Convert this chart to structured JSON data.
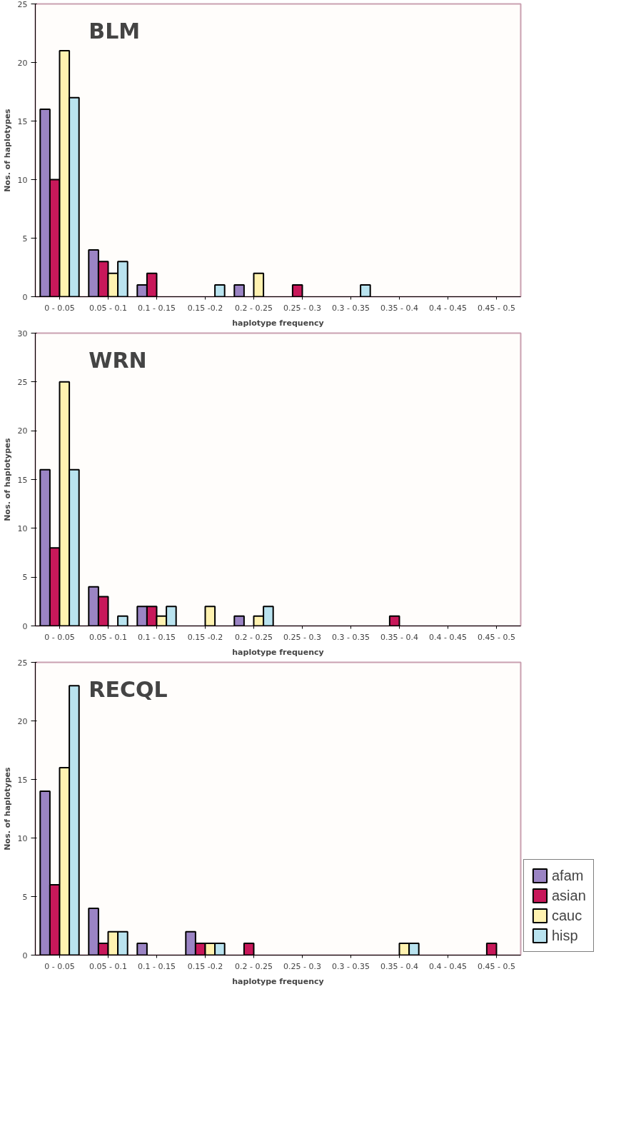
{
  "chart_data": [
    {
      "type": "bar",
      "title": "BLM",
      "xlabel": "haplotype frequency",
      "ylabel": "Nos. of haplotypes",
      "categories": [
        "0 - 0.05",
        "0.05 - 0.1",
        "0.1 - 0.15",
        "0.15 -0.2",
        "0.2 - 0.25",
        "0.25 - 0.3",
        "0.3 - 0.35",
        "0.35 - 0.4",
        "0.4 - 0.45",
        "0.45 - 0.5"
      ],
      "series": [
        {
          "color": "#9b84c4",
          "values": [
            16,
            4,
            1,
            0,
            1,
            0,
            0,
            0,
            0,
            0
          ]
        },
        {
          "color": "#c8185a",
          "values": [
            10,
            3,
            2,
            0,
            0,
            1,
            0,
            0,
            0,
            0
          ]
        },
        {
          "color": "#fff2b0",
          "values": [
            21,
            2,
            0,
            0,
            2,
            0,
            0,
            0,
            0,
            0
          ]
        },
        {
          "color": "#b9e3ef",
          "values": [
            17,
            3,
            0,
            1,
            0,
            0,
            1,
            0,
            0,
            0
          ]
        }
      ],
      "ylim": [
        0,
        25
      ],
      "yticks": [
        0,
        5,
        10,
        15,
        20,
        25
      ],
      "grid": false,
      "legend": false
    },
    {
      "type": "bar",
      "title": "WRN",
      "xlabel": "haplotype frequency",
      "ylabel": "Nos. of haplotypes",
      "categories": [
        "0 - 0.05",
        "0.05 - 0.1",
        "0.1 - 0.15",
        "0.15 -0.2",
        "0.2 - 0.25",
        "0.25 - 0.3",
        "0.3 - 0.35",
        "0.35 - 0.4",
        "0.4 - 0.45",
        "0.45 - 0.5"
      ],
      "series": [
        {
          "color": "#9b84c4",
          "values": [
            16,
            4,
            2,
            0,
            1,
            0,
            0,
            0,
            0,
            0
          ]
        },
        {
          "color": "#c8185a",
          "values": [
            8,
            3,
            2,
            0,
            0,
            0,
            0,
            1,
            0,
            0
          ]
        },
        {
          "color": "#fff2b0",
          "values": [
            25,
            0,
            1,
            2,
            1,
            0,
            0,
            0,
            0,
            0
          ]
        },
        {
          "color": "#b9e3ef",
          "values": [
            16,
            1,
            2,
            0,
            2,
            0,
            0,
            0,
            0,
            0
          ]
        }
      ],
      "ylim": [
        0,
        30
      ],
      "yticks": [
        0,
        5,
        10,
        15,
        20,
        25,
        30
      ],
      "grid": false,
      "legend": false
    },
    {
      "type": "bar",
      "title": "RECQL",
      "xlabel": "haplotype frequency",
      "ylabel": "Nos. of haplotypes",
      "categories": [
        "0 - 0.05",
        "0.05 - 0.1",
        "0.1 - 0.15",
        "0.15 -0.2",
        "0.2 - 0.25",
        "0.25 - 0.3",
        "0.3 - 0.35",
        "0.35 - 0.4",
        "0.4 - 0.45",
        "0.45 - 0.5"
      ],
      "series": [
        {
          "name": "afam",
          "color": "#9b84c4",
          "values": [
            14,
            4,
            1,
            2,
            0,
            0,
            0,
            0,
            0,
            0
          ]
        },
        {
          "name": "asian",
          "color": "#c8185a",
          "values": [
            6,
            1,
            0,
            1,
            1,
            0,
            0,
            0,
            0,
            1
          ]
        },
        {
          "name": "cauc",
          "color": "#fff2b0",
          "values": [
            16,
            2,
            0,
            1,
            0,
            0,
            0,
            1,
            0,
            0
          ]
        },
        {
          "name": "hisp",
          "color": "#b9e3ef",
          "values": [
            23,
            2,
            0,
            1,
            0,
            0,
            0,
            1,
            0,
            0
          ]
        }
      ],
      "ylim": [
        0,
        25
      ],
      "yticks": [
        0,
        5,
        10,
        15,
        20,
        25
      ],
      "grid": false,
      "legend": "right"
    }
  ]
}
